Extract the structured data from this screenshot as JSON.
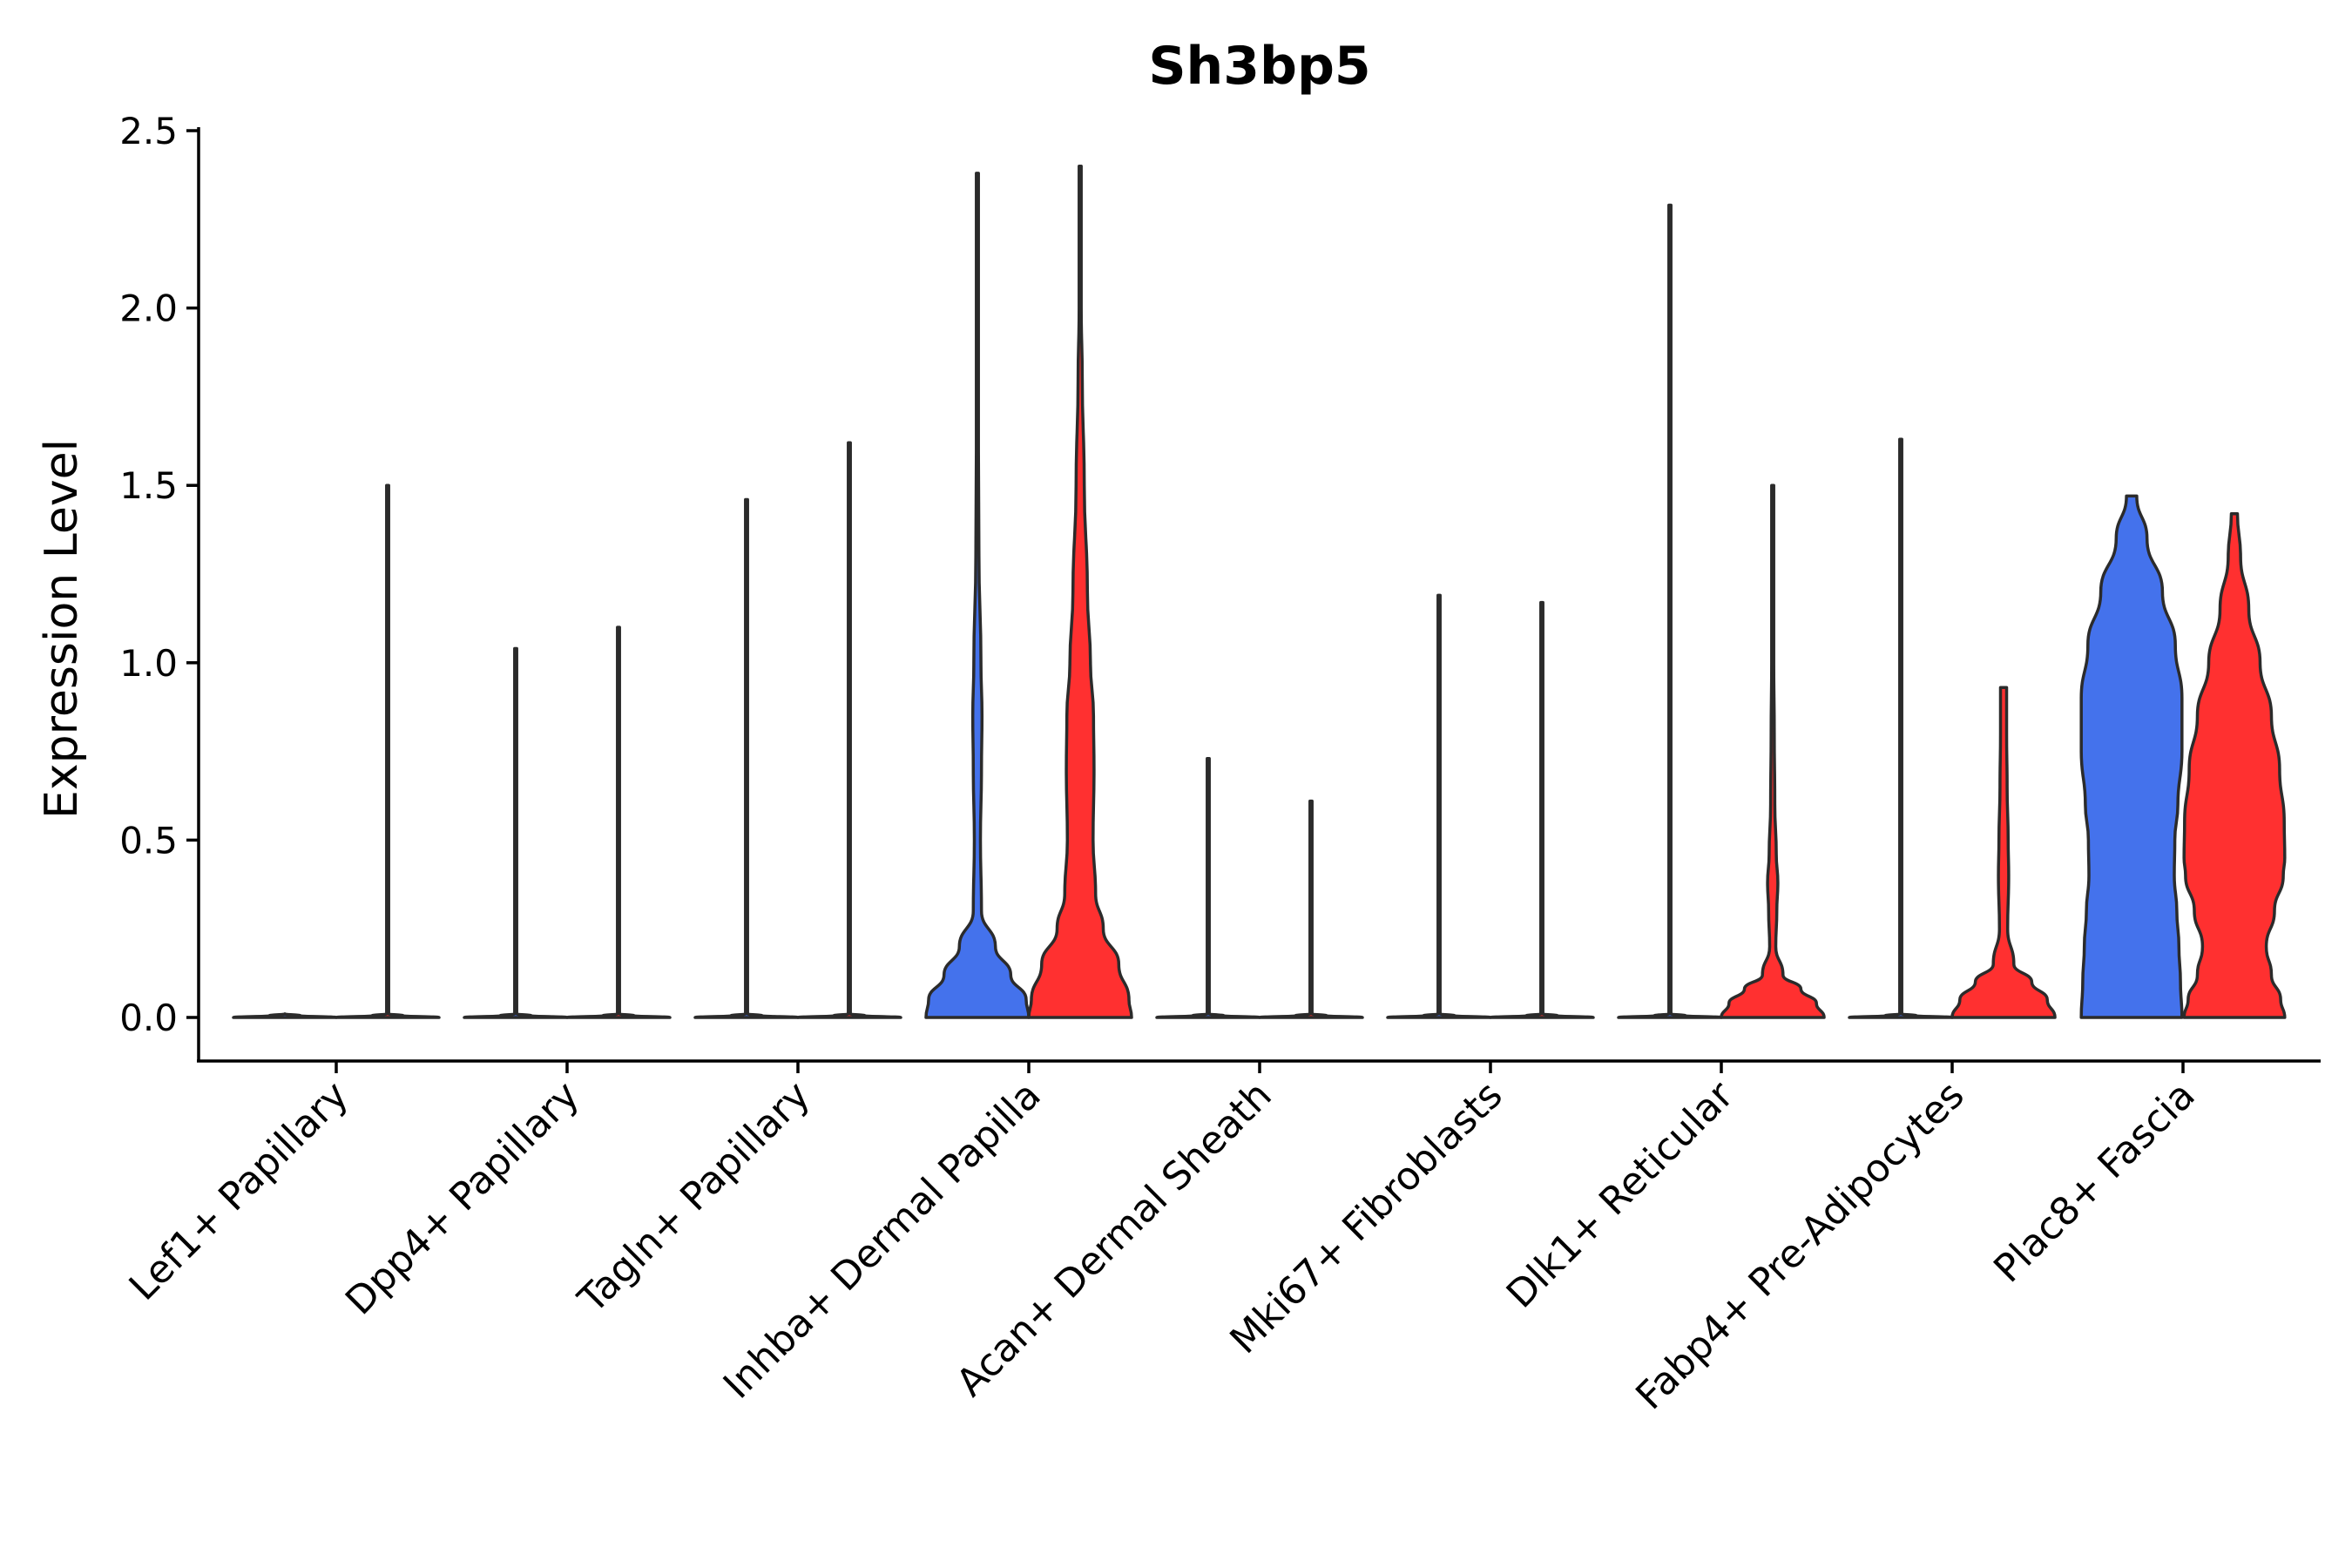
{
  "chart_data": {
    "type": "violin",
    "title": "Sh3bp5",
    "xlabel": "",
    "ylabel": "Expression Level",
    "ylim": [
      -0.12,
      2.52
    ],
    "yticks": [
      0.0,
      0.5,
      1.0,
      1.5,
      2.0,
      2.5
    ],
    "ytick_labels": [
      "0.0",
      "0.5",
      "1.0",
      "1.5",
      "2.0",
      "2.5"
    ],
    "grid": false,
    "legend": "none",
    "series_colors": {
      "blue": "#4472EC",
      "red": "#FF3030"
    },
    "categories": [
      "Lef1+ Papillary",
      "Dpp4+ Papillary",
      "Tagln+ Papillary",
      "Inhba+ Dermal Papilla",
      "Acan+ Dermal Sheath",
      "Mki67+ Fibroblasts",
      "Dlk1+ Reticular",
      "Fabp4+ Pre-Adipocytes",
      "Plac8+ Fascia"
    ],
    "violins": [
      {
        "category": "Lef1+ Papillary",
        "side": "left",
        "color": "#4472EC",
        "max": 0.01,
        "density": [
          [
            0,
            1.0
          ],
          [
            0.005,
            0.3
          ],
          [
            0.01,
            0
          ]
        ]
      },
      {
        "category": "Lef1+ Papillary",
        "side": "right",
        "color": "#FF3030",
        "max": 1.5,
        "density": [
          [
            0,
            1.0
          ],
          [
            0.005,
            0.3
          ],
          [
            0.01,
            0.02
          ],
          [
            1.5,
            0.02
          ]
        ]
      },
      {
        "category": "Dpp4+ Papillary",
        "side": "left",
        "color": "#4472EC",
        "max": 1.04,
        "density": [
          [
            0,
            1.0
          ],
          [
            0.005,
            0.3
          ],
          [
            0.01,
            0.02
          ],
          [
            1.04,
            0.02
          ]
        ]
      },
      {
        "category": "Dpp4+ Papillary",
        "side": "right",
        "color": "#FF3030",
        "max": 1.1,
        "density": [
          [
            0,
            1.0
          ],
          [
            0.005,
            0.3
          ],
          [
            0.01,
            0.02
          ],
          [
            1.1,
            0.02
          ]
        ]
      },
      {
        "category": "Tagln+ Papillary",
        "side": "left",
        "color": "#4472EC",
        "max": 1.46,
        "density": [
          [
            0,
            1.0
          ],
          [
            0.005,
            0.3
          ],
          [
            0.01,
            0.02
          ],
          [
            1.46,
            0.02
          ]
        ]
      },
      {
        "category": "Tagln+ Papillary",
        "side": "right",
        "color": "#FF3030",
        "max": 1.62,
        "density": [
          [
            0,
            1.0
          ],
          [
            0.005,
            0.3
          ],
          [
            0.01,
            0.02
          ],
          [
            1.62,
            0.02
          ]
        ]
      },
      {
        "category": "Inhba+ Dermal Papilla",
        "side": "left",
        "color": "#4472EC",
        "max": 2.38,
        "density": [
          [
            0,
            1.0
          ],
          [
            0.05,
            0.95
          ],
          [
            0.12,
            0.65
          ],
          [
            0.2,
            0.35
          ],
          [
            0.3,
            0.08
          ],
          [
            0.5,
            0.06
          ],
          [
            0.7,
            0.08
          ],
          [
            0.85,
            0.09
          ],
          [
            1.0,
            0.07
          ],
          [
            1.3,
            0.03
          ],
          [
            1.6,
            0.02
          ],
          [
            2.0,
            0.02
          ],
          [
            2.38,
            0.02
          ]
        ]
      },
      {
        "category": "Inhba+ Dermal Papilla",
        "side": "right",
        "color": "#FF3030",
        "max": 2.4,
        "density": [
          [
            0,
            1.0
          ],
          [
            0.05,
            0.95
          ],
          [
            0.15,
            0.75
          ],
          [
            0.25,
            0.45
          ],
          [
            0.35,
            0.3
          ],
          [
            0.5,
            0.25
          ],
          [
            0.7,
            0.27
          ],
          [
            0.85,
            0.26
          ],
          [
            1.0,
            0.2
          ],
          [
            1.2,
            0.14
          ],
          [
            1.5,
            0.08
          ],
          [
            1.8,
            0.04
          ],
          [
            2.0,
            0.02
          ],
          [
            2.4,
            0.02
          ]
        ]
      },
      {
        "category": "Acan+ Dermal Sheath",
        "side": "left",
        "color": "#4472EC",
        "max": 0.73,
        "density": [
          [
            0,
            1.0
          ],
          [
            0.005,
            0.3
          ],
          [
            0.01,
            0.02
          ],
          [
            0.73,
            0.02
          ]
        ]
      },
      {
        "category": "Acan+ Dermal Sheath",
        "side": "right",
        "color": "#FF3030",
        "max": 0.61,
        "density": [
          [
            0,
            1.0
          ],
          [
            0.005,
            0.3
          ],
          [
            0.01,
            0.02
          ],
          [
            0.61,
            0.02
          ]
        ]
      },
      {
        "category": "Mki67+ Fibroblasts",
        "side": "left",
        "color": "#4472EC",
        "max": 1.19,
        "density": [
          [
            0,
            1.0
          ],
          [
            0.005,
            0.3
          ],
          [
            0.01,
            0.02
          ],
          [
            1.19,
            0.02
          ]
        ]
      },
      {
        "category": "Mki67+ Fibroblasts",
        "side": "right",
        "color": "#FF3030",
        "max": 1.17,
        "density": [
          [
            0,
            1.0
          ],
          [
            0.005,
            0.3
          ],
          [
            0.01,
            0.02
          ],
          [
            1.17,
            0.02
          ]
        ]
      },
      {
        "category": "Dlk1+ Reticular",
        "side": "left",
        "color": "#4472EC",
        "max": 2.29,
        "density": [
          [
            0,
            1.0
          ],
          [
            0.005,
            0.3
          ],
          [
            0.01,
            0.02
          ],
          [
            2.29,
            0.02
          ]
        ]
      },
      {
        "category": "Dlk1+ Reticular",
        "side": "right",
        "color": "#FF3030",
        "max": 1.5,
        "density": [
          [
            0,
            1.0
          ],
          [
            0.04,
            0.85
          ],
          [
            0.08,
            0.55
          ],
          [
            0.12,
            0.2
          ],
          [
            0.2,
            0.06
          ],
          [
            0.3,
            0.08
          ],
          [
            0.38,
            0.1
          ],
          [
            0.46,
            0.07
          ],
          [
            0.6,
            0.04
          ],
          [
            0.8,
            0.03
          ],
          [
            1.0,
            0.02
          ],
          [
            1.5,
            0.02
          ]
        ]
      },
      {
        "category": "Fabp4+ Pre-Adipocytes",
        "side": "left",
        "color": "#4472EC",
        "max": 1.63,
        "density": [
          [
            0,
            1.0
          ],
          [
            0.005,
            0.3
          ],
          [
            0.01,
            0.02
          ],
          [
            1.63,
            0.02
          ]
        ]
      },
      {
        "category": "Fabp4+ Pre-Adipocytes",
        "side": "right",
        "color": "#FF3030",
        "max": 0.93,
        "density": [
          [
            0,
            1.0
          ],
          [
            0.05,
            0.85
          ],
          [
            0.1,
            0.55
          ],
          [
            0.15,
            0.2
          ],
          [
            0.25,
            0.08
          ],
          [
            0.4,
            0.1
          ],
          [
            0.5,
            0.09
          ],
          [
            0.65,
            0.07
          ],
          [
            0.8,
            0.06
          ],
          [
            0.93,
            0.06
          ]
        ]
      },
      {
        "category": "Plac8+ Fascia",
        "side": "left",
        "color": "#4472EC",
        "max": 1.47,
        "density": [
          [
            0,
            0.98
          ],
          [
            0.1,
            0.95
          ],
          [
            0.2,
            0.92
          ],
          [
            0.3,
            0.88
          ],
          [
            0.4,
            0.83
          ],
          [
            0.5,
            0.84
          ],
          [
            0.6,
            0.9
          ],
          [
            0.75,
            0.98
          ],
          [
            0.9,
            0.98
          ],
          [
            1.05,
            0.85
          ],
          [
            1.2,
            0.6
          ],
          [
            1.35,
            0.3
          ],
          [
            1.47,
            0.1
          ]
        ]
      },
      {
        "category": "Plac8+ Fascia",
        "side": "right",
        "color": "#FF3030",
        "max": 1.42,
        "density": [
          [
            0,
            0.98
          ],
          [
            0.05,
            0.9
          ],
          [
            0.12,
            0.72
          ],
          [
            0.2,
            0.62
          ],
          [
            0.3,
            0.78
          ],
          [
            0.4,
            0.95
          ],
          [
            0.45,
            0.98
          ],
          [
            0.55,
            0.97
          ],
          [
            0.7,
            0.88
          ],
          [
            0.85,
            0.72
          ],
          [
            1.0,
            0.5
          ],
          [
            1.15,
            0.28
          ],
          [
            1.3,
            0.12
          ],
          [
            1.42,
            0.06
          ]
        ]
      }
    ]
  }
}
